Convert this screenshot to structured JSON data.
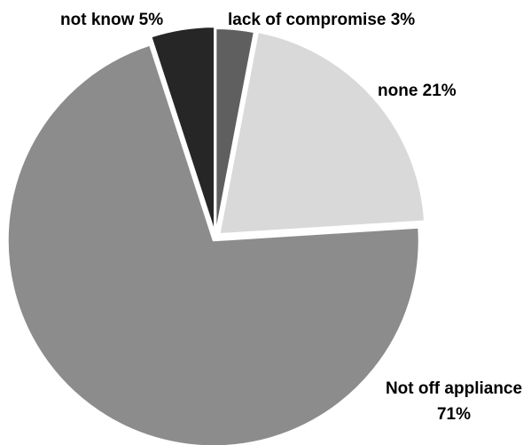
{
  "chart_data": {
    "type": "pie",
    "title": "",
    "slices": [
      {
        "label": "lack of compromise",
        "value": 3,
        "value_label": "3%",
        "color": "#5f5f5f",
        "label_lines": [
          "lack of compromise 3%"
        ]
      },
      {
        "label": "none",
        "value": 21,
        "value_label": "21%",
        "color": "#d9d9d9",
        "label_lines": [
          "none 21%"
        ]
      },
      {
        "label": "Not off appliance",
        "value": 71,
        "value_label": "71%",
        "color": "#8c8c8c",
        "label_lines": [
          "Not off appliance",
          "71%"
        ]
      },
      {
        "label": "not know",
        "value": 5,
        "value_label": "5%",
        "color": "#262626",
        "label_lines": [
          "not know 5%"
        ]
      }
    ],
    "start_angle_deg": 0,
    "direction": "clockwise",
    "exploded": true,
    "legend": "none"
  }
}
